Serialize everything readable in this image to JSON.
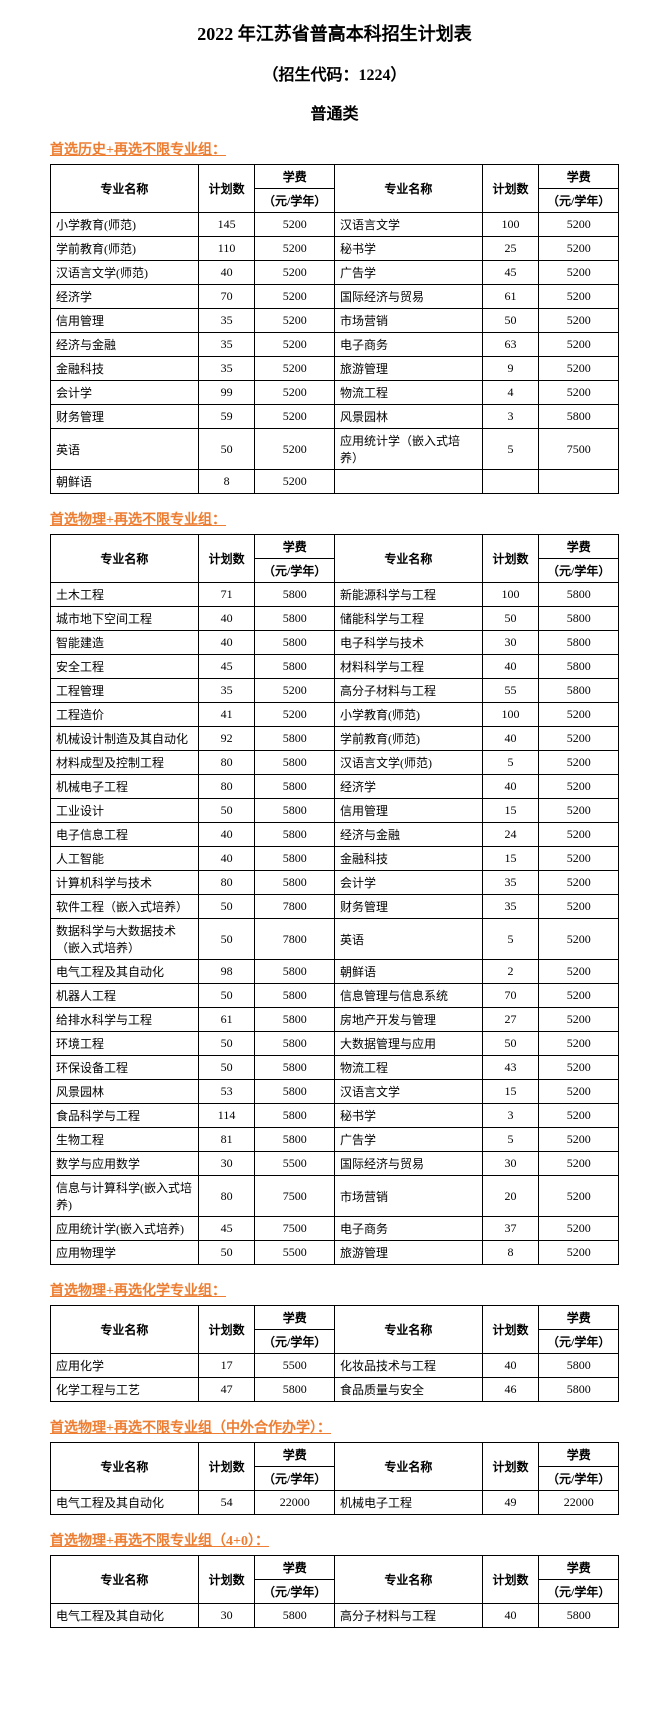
{
  "title": "2022 年江苏省普高本科招生计划表",
  "subtitle": "（招生代码：1224）",
  "category": "普通类",
  "headers": {
    "major": "专业名称",
    "plan": "计划数",
    "fee": "学费",
    "fee_unit": "（元/学年）"
  },
  "sections": [
    {
      "title": "首选历史+再选不限专业组：",
      "rows": [
        {
          "l_name": "小学教育(师范)",
          "l_plan": "145",
          "l_fee": "5200",
          "r_name": "汉语言文学",
          "r_plan": "100",
          "r_fee": "5200"
        },
        {
          "l_name": "学前教育(师范)",
          "l_plan": "110",
          "l_fee": "5200",
          "r_name": "秘书学",
          "r_plan": "25",
          "r_fee": "5200"
        },
        {
          "l_name": "汉语言文学(师范)",
          "l_plan": "40",
          "l_fee": "5200",
          "r_name": "广告学",
          "r_plan": "45",
          "r_fee": "5200"
        },
        {
          "l_name": "经济学",
          "l_plan": "70",
          "l_fee": "5200",
          "r_name": "国际经济与贸易",
          "r_plan": "61",
          "r_fee": "5200"
        },
        {
          "l_name": "信用管理",
          "l_plan": "35",
          "l_fee": "5200",
          "r_name": "市场营销",
          "r_plan": "50",
          "r_fee": "5200"
        },
        {
          "l_name": "经济与金融",
          "l_plan": "35",
          "l_fee": "5200",
          "r_name": "电子商务",
          "r_plan": "63",
          "r_fee": "5200"
        },
        {
          "l_name": "金融科技",
          "l_plan": "35",
          "l_fee": "5200",
          "r_name": "旅游管理",
          "r_plan": "9",
          "r_fee": "5200"
        },
        {
          "l_name": "会计学",
          "l_plan": "99",
          "l_fee": "5200",
          "r_name": "物流工程",
          "r_plan": "4",
          "r_fee": "5200"
        },
        {
          "l_name": "财务管理",
          "l_plan": "59",
          "l_fee": "5200",
          "r_name": "风景园林",
          "r_plan": "3",
          "r_fee": "5800"
        },
        {
          "l_name": "英语",
          "l_plan": "50",
          "l_fee": "5200",
          "r_name": "应用统计学（嵌入式培养）",
          "r_plan": "5",
          "r_fee": "7500"
        },
        {
          "l_name": "朝鲜语",
          "l_plan": "8",
          "l_fee": "5200",
          "r_name": "",
          "r_plan": "",
          "r_fee": ""
        }
      ]
    },
    {
      "title": "首选物理+再选不限专业组：",
      "rows": [
        {
          "l_name": "土木工程",
          "l_plan": "71",
          "l_fee": "5800",
          "r_name": "新能源科学与工程",
          "r_plan": "100",
          "r_fee": "5800"
        },
        {
          "l_name": "城市地下空间工程",
          "l_plan": "40",
          "l_fee": "5800",
          "r_name": "储能科学与工程",
          "r_plan": "50",
          "r_fee": "5800"
        },
        {
          "l_name": "智能建造",
          "l_plan": "40",
          "l_fee": "5800",
          "r_name": "电子科学与技术",
          "r_plan": "30",
          "r_fee": "5800"
        },
        {
          "l_name": "安全工程",
          "l_plan": "45",
          "l_fee": "5800",
          "r_name": "材料科学与工程",
          "r_plan": "40",
          "r_fee": "5800"
        },
        {
          "l_name": "工程管理",
          "l_plan": "35",
          "l_fee": "5200",
          "r_name": "高分子材料与工程",
          "r_plan": "55",
          "r_fee": "5800"
        },
        {
          "l_name": "工程造价",
          "l_plan": "41",
          "l_fee": "5200",
          "r_name": "小学教育(师范)",
          "r_plan": "100",
          "r_fee": "5200"
        },
        {
          "l_name": "机械设计制造及其自动化",
          "l_plan": "92",
          "l_fee": "5800",
          "r_name": "学前教育(师范)",
          "r_plan": "40",
          "r_fee": "5200"
        },
        {
          "l_name": "材料成型及控制工程",
          "l_plan": "80",
          "l_fee": "5800",
          "r_name": "汉语言文学(师范)",
          "r_plan": "5",
          "r_fee": "5200"
        },
        {
          "l_name": "机械电子工程",
          "l_plan": "80",
          "l_fee": "5800",
          "r_name": "经济学",
          "r_plan": "40",
          "r_fee": "5200"
        },
        {
          "l_name": "工业设计",
          "l_plan": "50",
          "l_fee": "5800",
          "r_name": "信用管理",
          "r_plan": "15",
          "r_fee": "5200"
        },
        {
          "l_name": "电子信息工程",
          "l_plan": "40",
          "l_fee": "5800",
          "r_name": "经济与金融",
          "r_plan": "24",
          "r_fee": "5200"
        },
        {
          "l_name": "人工智能",
          "l_plan": "40",
          "l_fee": "5800",
          "r_name": "金融科技",
          "r_plan": "15",
          "r_fee": "5200"
        },
        {
          "l_name": "计算机科学与技术",
          "l_plan": "80",
          "l_fee": "5800",
          "r_name": "会计学",
          "r_plan": "35",
          "r_fee": "5200"
        },
        {
          "l_name": "软件工程（嵌入式培养）",
          "l_plan": "50",
          "l_fee": "7800",
          "r_name": "财务管理",
          "r_plan": "35",
          "r_fee": "5200"
        },
        {
          "l_name": "数据科学与大数据技术（嵌入式培养）",
          "l_plan": "50",
          "l_fee": "7800",
          "r_name": "英语",
          "r_plan": "5",
          "r_fee": "5200"
        },
        {
          "l_name": "电气工程及其自动化",
          "l_plan": "98",
          "l_fee": "5800",
          "r_name": "朝鲜语",
          "r_plan": "2",
          "r_fee": "5200"
        },
        {
          "l_name": "机器人工程",
          "l_plan": "50",
          "l_fee": "5800",
          "r_name": "信息管理与信息系统",
          "r_plan": "70",
          "r_fee": "5200"
        },
        {
          "l_name": "给排水科学与工程",
          "l_plan": "61",
          "l_fee": "5800",
          "r_name": "房地产开发与管理",
          "r_plan": "27",
          "r_fee": "5200"
        },
        {
          "l_name": "环境工程",
          "l_plan": "50",
          "l_fee": "5800",
          "r_name": "大数据管理与应用",
          "r_plan": "50",
          "r_fee": "5200"
        },
        {
          "l_name": "环保设备工程",
          "l_plan": "50",
          "l_fee": "5800",
          "r_name": "物流工程",
          "r_plan": "43",
          "r_fee": "5200"
        },
        {
          "l_name": "风景园林",
          "l_plan": "53",
          "l_fee": "5800",
          "r_name": "汉语言文学",
          "r_plan": "15",
          "r_fee": "5200"
        },
        {
          "l_name": "食品科学与工程",
          "l_plan": "114",
          "l_fee": "5800",
          "r_name": "秘书学",
          "r_plan": "3",
          "r_fee": "5200"
        },
        {
          "l_name": "生物工程",
          "l_plan": "81",
          "l_fee": "5800",
          "r_name": "广告学",
          "r_plan": "5",
          "r_fee": "5200"
        },
        {
          "l_name": "数学与应用数学",
          "l_plan": "30",
          "l_fee": "5500",
          "r_name": "国际经济与贸易",
          "r_plan": "30",
          "r_fee": "5200"
        },
        {
          "l_name": "信息与计算科学(嵌入式培养)",
          "l_plan": "80",
          "l_fee": "7500",
          "r_name": "市场营销",
          "r_plan": "20",
          "r_fee": "5200"
        },
        {
          "l_name": "应用统计学(嵌入式培养)",
          "l_plan": "45",
          "l_fee": "7500",
          "r_name": "电子商务",
          "r_plan": "37",
          "r_fee": "5200"
        },
        {
          "l_name": "应用物理学",
          "l_plan": "50",
          "l_fee": "5500",
          "r_name": "旅游管理",
          "r_plan": "8",
          "r_fee": "5200"
        }
      ]
    },
    {
      "title": "首选物理+再选化学专业组：",
      "rows": [
        {
          "l_name": "应用化学",
          "l_plan": "17",
          "l_fee": "5500",
          "r_name": "化妆品技术与工程",
          "r_plan": "40",
          "r_fee": "5800"
        },
        {
          "l_name": "化学工程与工艺",
          "l_plan": "47",
          "l_fee": "5800",
          "r_name": "食品质量与安全",
          "r_plan": "46",
          "r_fee": "5800"
        }
      ]
    },
    {
      "title": "首选物理+再选不限专业组（中外合作办学）：",
      "rows": [
        {
          "l_name": "电气工程及其自动化",
          "l_plan": "54",
          "l_fee": "22000",
          "r_name": "机械电子工程",
          "r_plan": "49",
          "r_fee": "22000"
        }
      ]
    },
    {
      "title": "首选物理+再选不限专业组（4+0）：",
      "rows": [
        {
          "l_name": "电气工程及其自动化",
          "l_plan": "30",
          "l_fee": "5800",
          "r_name": "高分子材料与工程",
          "r_plan": "40",
          "r_fee": "5800"
        }
      ]
    }
  ]
}
